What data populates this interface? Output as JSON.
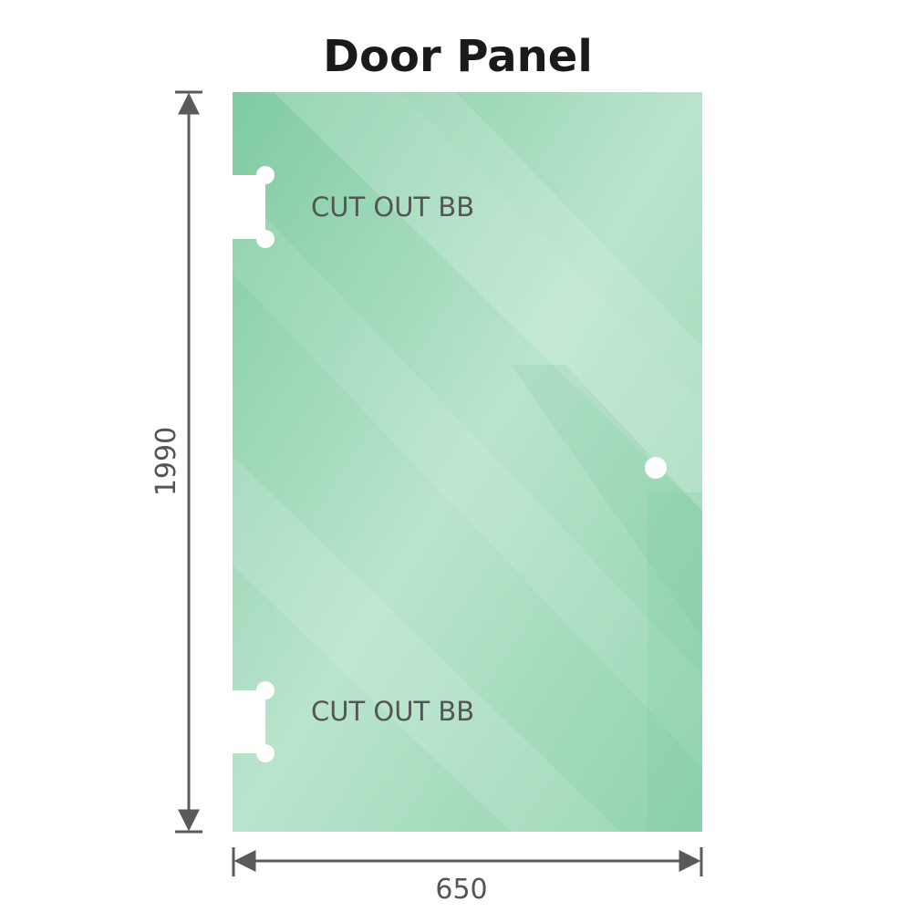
{
  "title": "Door Panel",
  "cutouts": [
    {
      "label": "CUT OUT BB"
    },
    {
      "label": "CUT OUT BB"
    }
  ],
  "dimensions": {
    "height": "1990",
    "width": "650"
  },
  "colors": {
    "glass": "#86cfa7",
    "glass_light": "#bde6cf",
    "dimension_line": "#5a5a5a",
    "text": "#555555"
  }
}
